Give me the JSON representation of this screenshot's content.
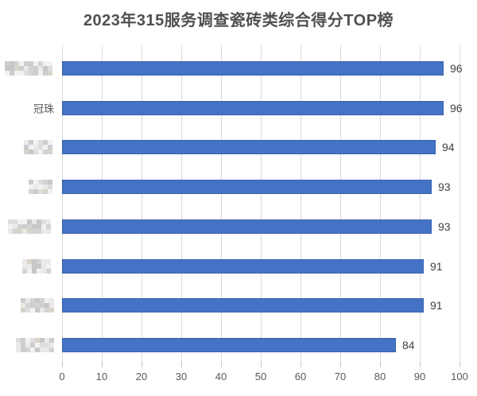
{
  "chart_data": {
    "type": "bar",
    "orientation": "horizontal",
    "title": "2023年315服务调查瓷砖类综合得分TOP榜",
    "categories": [
      "",
      "冠珠",
      "",
      "",
      "",
      "",
      "",
      ""
    ],
    "censored": [
      true,
      false,
      true,
      true,
      true,
      true,
      true,
      true
    ],
    "censor_widths": [
      62,
      0,
      38,
      32,
      58,
      40,
      42,
      48
    ],
    "values": [
      96,
      96,
      94,
      93,
      93,
      91,
      91,
      84
    ],
    "xlim": [
      0,
      100
    ],
    "x_ticks": [
      0,
      10,
      20,
      30,
      40,
      50,
      60,
      70,
      80,
      90,
      100
    ],
    "grid": "vertical",
    "legend": "none",
    "value_labels": true
  },
  "colors": {
    "bar": "#4472C4",
    "bar_border": "#3A62AE",
    "gridline": "#D9D9D9",
    "tick": "#C9C9C9",
    "axis_label": "#595959",
    "category_label": "#595959",
    "value_label": "#404040",
    "title": "#505050",
    "background": "#FFFFFF",
    "censor_palette": [
      "#C7C7C7",
      "#D3D3D3",
      "#DEDEDE",
      "#E9E9E9",
      "#F2F2F2",
      "#D9D3CA",
      "#CDCDCD"
    ]
  }
}
